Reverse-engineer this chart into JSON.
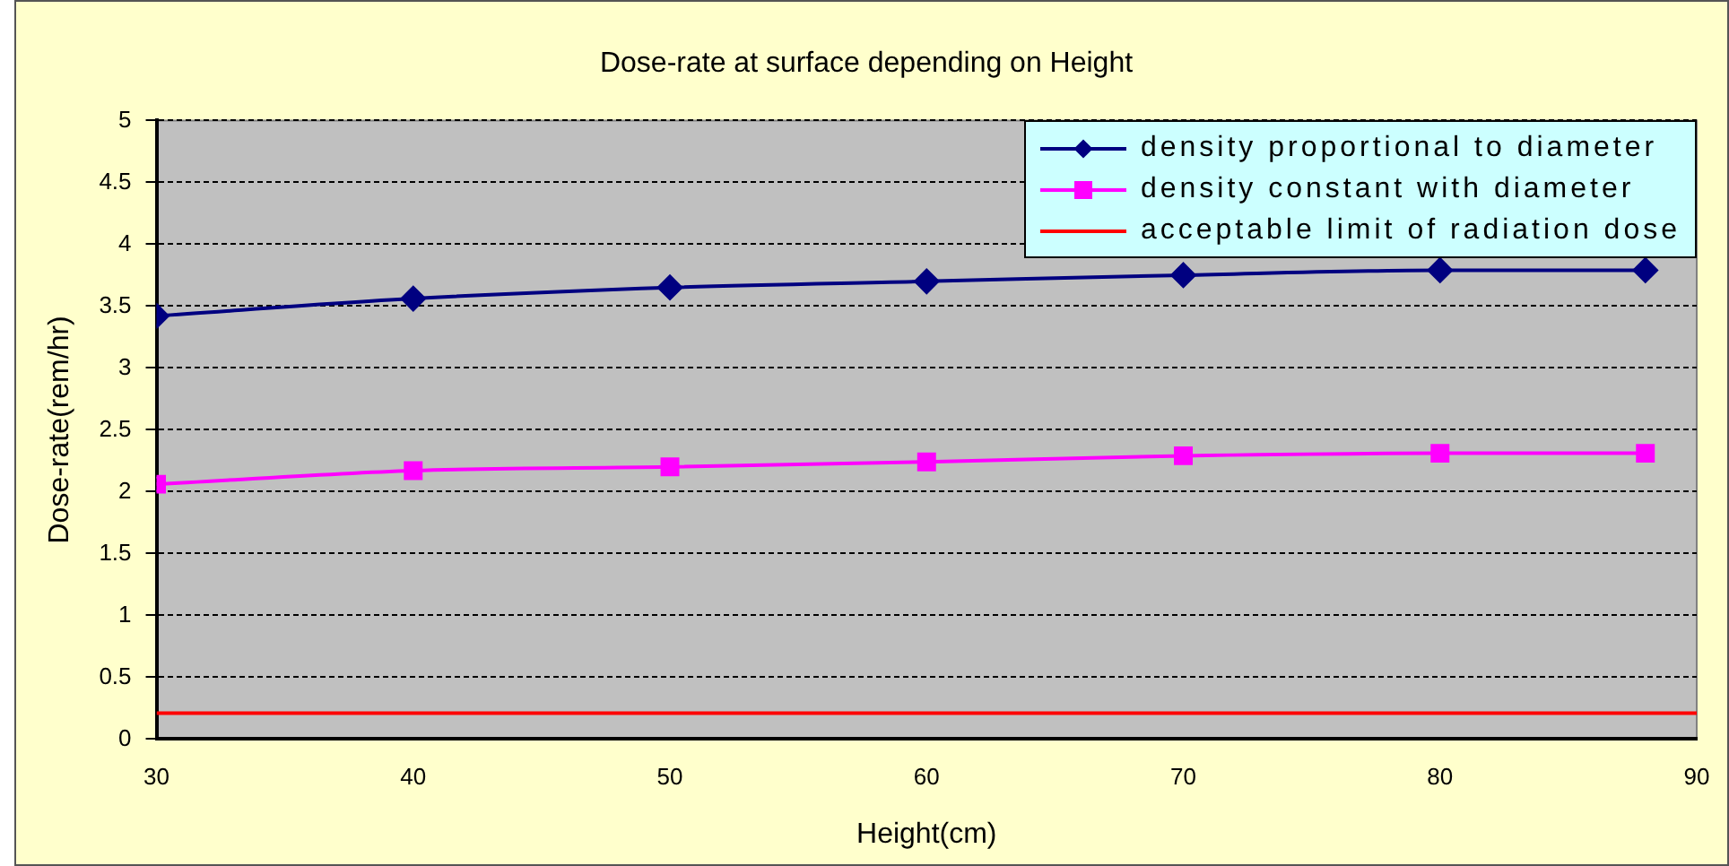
{
  "chart_data": {
    "type": "line",
    "title": "Dose-rate at surface depending on Height",
    "xlabel": "Height(cm)",
    "ylabel": "Dose-rate(rem/hr)",
    "x": [
      30,
      40,
      50,
      60,
      70,
      80,
      88
    ],
    "series": [
      {
        "name": "density proportional to diameter",
        "color": "#000080",
        "marker": "diamond",
        "values": [
          3.42,
          3.56,
          3.65,
          3.7,
          3.75,
          3.79,
          3.79
        ]
      },
      {
        "name": "density constant with diameter",
        "color": "#ff00ff",
        "marker": "square",
        "values": [
          2.06,
          2.17,
          2.2,
          2.24,
          2.29,
          2.31,
          2.31
        ]
      },
      {
        "name": "acceptable limit of radiation dose",
        "color": "#ff0000",
        "marker": "none",
        "x": [
          30,
          90
        ],
        "values": [
          0.21,
          0.21
        ]
      }
    ],
    "xlim": [
      30,
      90
    ],
    "xticks": [
      30,
      40,
      50,
      60,
      70,
      80,
      90
    ],
    "ylim": [
      0,
      5
    ],
    "yticks": [
      0,
      0.5,
      1,
      1.5,
      2,
      2.5,
      3,
      3.5,
      4,
      4.5,
      5
    ],
    "grid": "y",
    "legend": "top right"
  }
}
